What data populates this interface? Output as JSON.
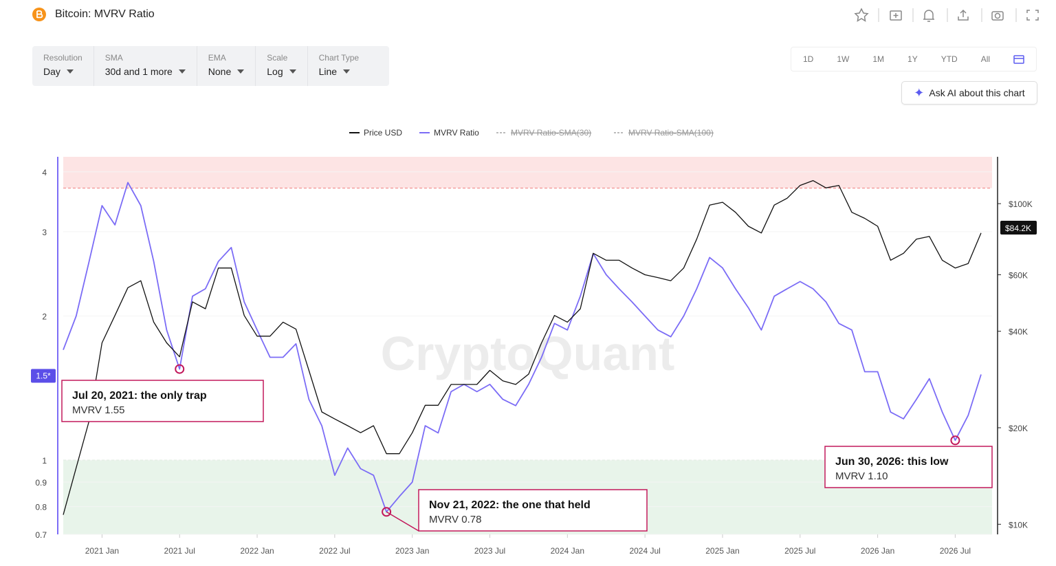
{
  "header": {
    "title": "Bitcoin: MVRV Ratio"
  },
  "controls": [
    {
      "label": "Resolution",
      "value": "Day"
    },
    {
      "label": "SMA",
      "value": "30d and 1 more"
    },
    {
      "label": "EMA",
      "value": "None"
    },
    {
      "label": "Scale",
      "value": "Log"
    },
    {
      "label": "Chart Type",
      "value": "Line"
    }
  ],
  "ranges": [
    "1D",
    "1W",
    "1M",
    "1Y",
    "YTD",
    "All"
  ],
  "ask_ai": "Ask AI about this chart",
  "chart_data": {
    "type": "line",
    "watermark": "CryptoQuant",
    "log_scale": true,
    "x": [
      "2020 Oct",
      "2020 Nov",
      "2020 Dec",
      "2021 Jan",
      "2021 Feb",
      "2021 Mar",
      "2021 Apr",
      "2021 May",
      "2021 Jun",
      "2021 Jul",
      "2021 Aug",
      "2021 Sep",
      "2021 Oct",
      "2021 Nov",
      "2021 Dec",
      "2022 Jan",
      "2022 Feb",
      "2022 Mar",
      "2022 Apr",
      "2022 May",
      "2022 Jun",
      "2022 Jul",
      "2022 Aug",
      "2022 Sep",
      "2022 Oct",
      "2022 Nov",
      "2022 Dec",
      "2023 Jan",
      "2023 Feb",
      "2023 Mar",
      "2023 Apr",
      "2023 May",
      "2023 Jun",
      "2023 Jul",
      "2023 Aug",
      "2023 Sep",
      "2023 Oct",
      "2023 Nov",
      "2023 Dec",
      "2024 Jan",
      "2024 Feb",
      "2024 Mar",
      "2024 Apr",
      "2024 May",
      "2024 Jun",
      "2024 Jul",
      "2024 Aug",
      "2024 Sep",
      "2024 Oct",
      "2024 Nov",
      "2024 Dec",
      "2025 Jan",
      "2025 Feb",
      "2025 Mar",
      "2025 Apr",
      "2025 May",
      "2025 Jun",
      "2025 Jul",
      "2025 Aug",
      "2025 Sep",
      "2025 Oct",
      "2025 Nov",
      "2025 Dec",
      "2026 Jan",
      "2026 Feb",
      "2026 Mar",
      "2026 Apr",
      "2026 May",
      "2026 Jun",
      "2026 Jul",
      "2026 Aug",
      "2026 Sep"
    ],
    "xticks": [
      "2021 Jan",
      "2021 Jul",
      "2022 Jan",
      "2022 Jul",
      "2023 Jan",
      "2023 Jul",
      "2024 Jan",
      "2024 Jul",
      "2025 Jan",
      "2025 Jul",
      "2026 Jan",
      "2026 Jul"
    ],
    "series": [
      {
        "name": "Price USD",
        "color": "#111111",
        "axis": "y2",
        "values": [
          10700,
          15000,
          21000,
          36800,
          44800,
          54700,
          57500,
          42700,
          36800,
          33300,
          49400,
          47000,
          63000,
          63000,
          44800,
          38600,
          38600,
          42700,
          40600,
          30200,
          22400,
          21300,
          20300,
          19300,
          20300,
          16600,
          16600,
          19300,
          23500,
          23500,
          27300,
          27300,
          27300,
          30200,
          28000,
          27300,
          29400,
          36800,
          44800,
          42700,
          47000,
          70000,
          66600,
          66600,
          63000,
          60000,
          58800,
          57500,
          63000,
          77500,
          99000,
          101000,
          94000,
          85000,
          81000,
          99000,
          104000,
          114000,
          118000,
          112000,
          114000,
          94000,
          90000,
          85000,
          66600,
          70000,
          77500,
          79000,
          66600,
          63000,
          65000,
          81000
        ]
      },
      {
        "name": "MVRV Ratio",
        "color": "#7b6cf6",
        "values": [
          1.7,
          2.0,
          2.6,
          3.4,
          3.1,
          3.8,
          3.4,
          2.6,
          1.87,
          1.55,
          2.2,
          2.28,
          2.6,
          2.78,
          2.14,
          1.87,
          1.64,
          1.64,
          1.75,
          1.34,
          1.18,
          0.93,
          1.06,
          0.96,
          0.93,
          0.78,
          0.84,
          0.9,
          1.18,
          1.14,
          1.39,
          1.44,
          1.39,
          1.44,
          1.34,
          1.3,
          1.44,
          1.64,
          1.93,
          1.87,
          2.2,
          2.7,
          2.44,
          2.28,
          2.14,
          2.0,
          1.87,
          1.81,
          2.0,
          2.28,
          2.65,
          2.52,
          2.28,
          2.08,
          1.87,
          2.2,
          2.28,
          2.36,
          2.28,
          2.14,
          1.93,
          1.87,
          1.53,
          1.53,
          1.26,
          1.22,
          1.34,
          1.48,
          1.26,
          1.1,
          1.24,
          1.51
        ]
      }
    ],
    "hidden_series": [
      "MVRV Ratio-SMA(30)",
      "MVRV Ratio-SMA(100)"
    ],
    "ylim": [
      0.7,
      4.3
    ],
    "yticks": [
      0.7,
      0.8,
      0.9,
      1,
      2,
      3,
      4
    ],
    "y2lim": [
      9300,
      140000
    ],
    "y2ticks": [
      {
        "value": 10000,
        "label": "$10K"
      },
      {
        "value": 20000,
        "label": "$20K"
      },
      {
        "value": 40000,
        "label": "$40K"
      },
      {
        "value": 60000,
        "label": "$60K"
      },
      {
        "value": 100000,
        "label": "$100K"
      }
    ],
    "y_marker": {
      "value": 1.5,
      "label": "1.5*"
    },
    "y2_last": {
      "value": 84200,
      "label": "$84.2K"
    },
    "bands": [
      {
        "from": 3.7,
        "to": 4.3,
        "color": "#fde4e4",
        "line": "#f08080"
      },
      {
        "from": 0.7,
        "to": 1,
        "color": "#e8f4ea",
        "line": "#7ccf7c"
      }
    ],
    "annotations": [
      {
        "title": "Jul 20, 2021: the only trap",
        "text": "MVRV 1.55",
        "x": "2021 Jul",
        "value": 1.55
      },
      {
        "title": "Nov 21, 2022: the one that held",
        "text": "MVRV 0.78",
        "x": "2022 Nov",
        "value": 0.78
      },
      {
        "title": "Jun 30, 2026: this low",
        "text": "MVRV 1.10",
        "x": "2026 Jul",
        "value": 1.1
      }
    ]
  }
}
